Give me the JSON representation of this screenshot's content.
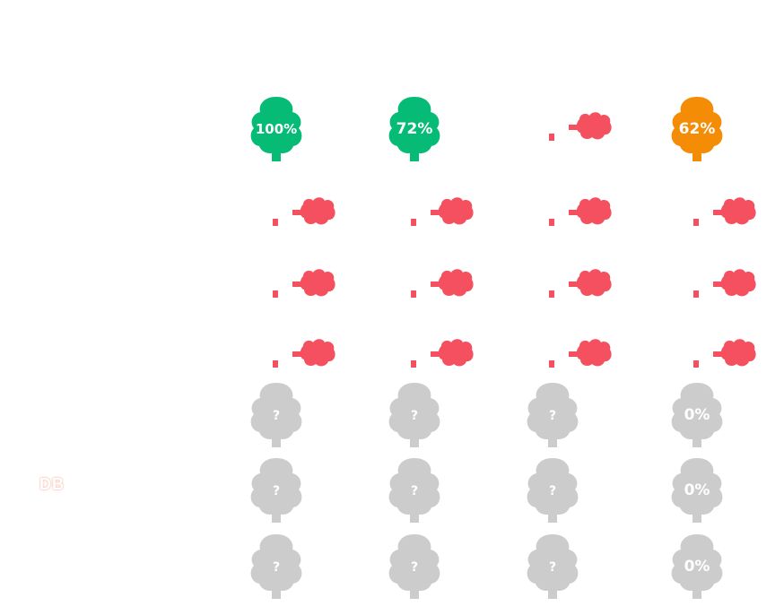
{
  "colors": {
    "green": "#05bb76",
    "orange": "#f48c06",
    "red": "#f4505f",
    "gray": "#cccccc"
  },
  "row_label": "DB",
  "grid": [
    [
      {
        "state": "green",
        "text": "100%"
      },
      {
        "state": "green",
        "text": "72%"
      },
      {
        "state": "fallen",
        "text": ""
      },
      {
        "state": "orange",
        "text": "62%"
      }
    ],
    [
      {
        "state": "fallen",
        "text": ""
      },
      {
        "state": "fallen",
        "text": ""
      },
      {
        "state": "fallen",
        "text": ""
      },
      {
        "state": "fallen",
        "text": ""
      }
    ],
    [
      {
        "state": "fallen",
        "text": ""
      },
      {
        "state": "fallen",
        "text": ""
      },
      {
        "state": "fallen",
        "text": ""
      },
      {
        "state": "fallen",
        "text": ""
      }
    ],
    [
      {
        "state": "fallen",
        "text": ""
      },
      {
        "state": "fallen",
        "text": ""
      },
      {
        "state": "fallen",
        "text": ""
      },
      {
        "state": "fallen",
        "text": ""
      }
    ],
    [
      {
        "state": "gray",
        "text": "?"
      },
      {
        "state": "gray",
        "text": "?"
      },
      {
        "state": "gray",
        "text": "?"
      },
      {
        "state": "gray",
        "text": "0%"
      }
    ],
    [
      {
        "state": "gray",
        "text": "?"
      },
      {
        "state": "gray",
        "text": "?"
      },
      {
        "state": "gray",
        "text": "?"
      },
      {
        "state": "gray",
        "text": "0%"
      }
    ],
    [
      {
        "state": "gray",
        "text": "?"
      },
      {
        "state": "gray",
        "text": "?"
      },
      {
        "state": "gray",
        "text": "?"
      },
      {
        "state": "gray",
        "text": "0%"
      }
    ]
  ]
}
